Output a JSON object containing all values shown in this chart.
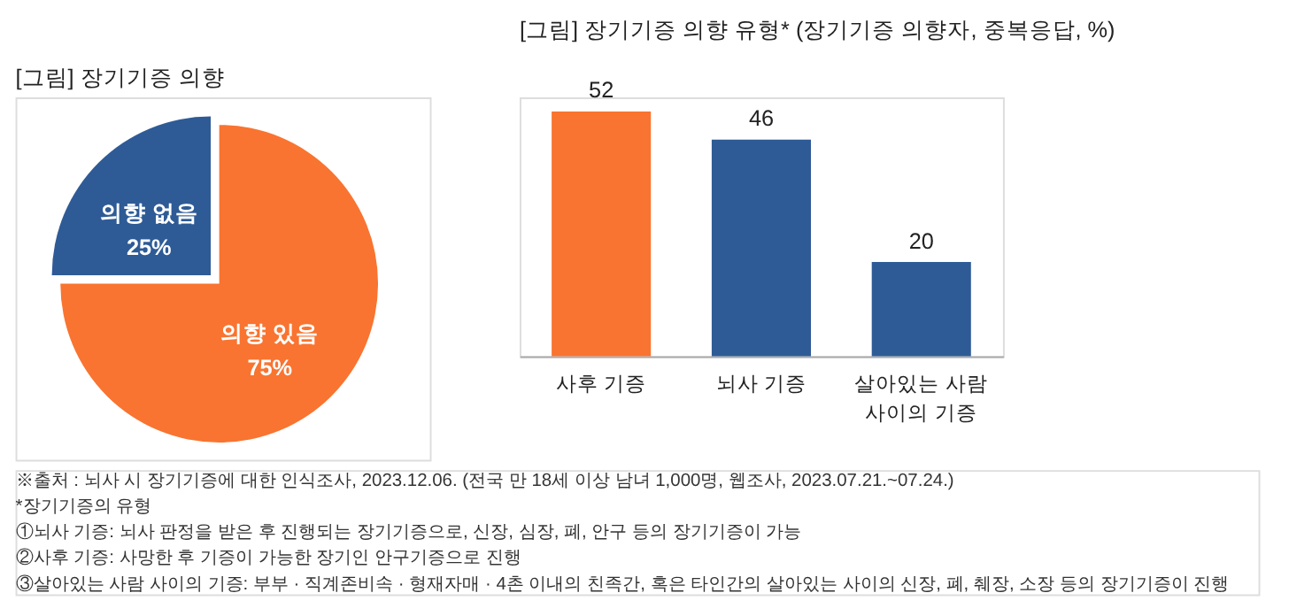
{
  "chart_data": [
    {
      "type": "pie",
      "title": "[그림] 장기기증 의향",
      "categories": [
        "의향 있음",
        "의향 없음"
      ],
      "values": [
        75,
        25
      ],
      "colors": [
        "#f97430",
        "#2e5b96"
      ],
      "value_labels": [
        "75%",
        "25%"
      ],
      "legend": false
    },
    {
      "type": "bar",
      "title": "[그림] 장기기증 의향 유형* (장기기증 의향자, 중복응답, %)",
      "categories": [
        "사후 기증",
        "뇌사 기증",
        "살아있는 사람\n사이의 기증"
      ],
      "values": [
        52,
        46,
        20
      ],
      "colors": [
        "#f97430",
        "#2e5b96",
        "#2e5b96"
      ],
      "data_labels": true,
      "tick_labels": "x",
      "grid": false,
      "annotations": [
        "※출처 : 뇌사 시 장기기증에 대한 인식조사, 2023.12.06. (전국 만 18세 이상 남녀 1,000명, 웹조사, 2023.07.21.~07.24.)",
        "*장기기증의 유형",
        "   ①뇌사 기증: 뇌사 판정을 받은 후 진행되는 장기기증으로, 신장, 심장, 폐, 안구 등의 장기기증이 가능",
        "   ②사후 기증: 사망한 후 기증이 가능한 장기인 안구기증으로 진행",
        "   ③살아있는 사람 사이의 기증: 부부 · 직계존비속 · 형재자매 · 4촌 이내의 친족간, 혹은 타인간의 살아있는 사이의 신장, 폐, 췌장, 소장 등의 장기기증이 진행"
      ]
    }
  ]
}
